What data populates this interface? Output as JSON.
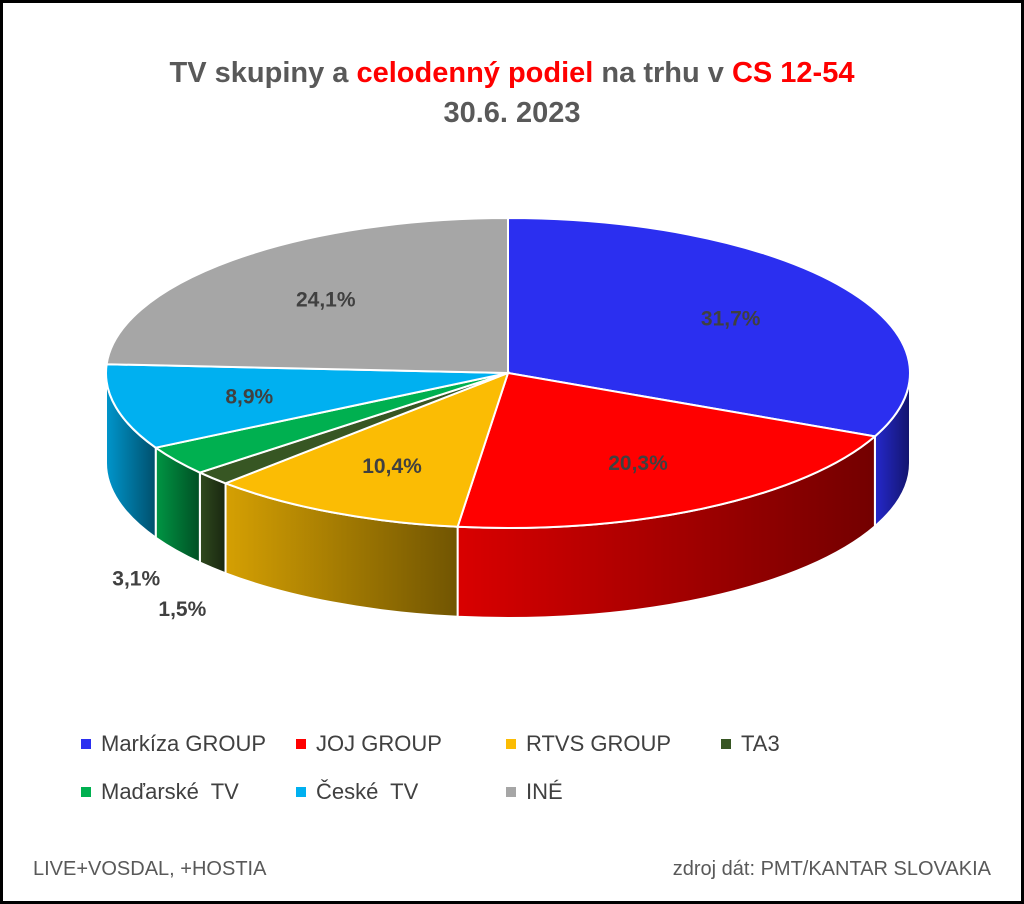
{
  "title": {
    "line1_a": "TV skupiny a ",
    "line1_b": "celodenný podiel",
    "line1_c": " na trhu v ",
    "line1_d": "CS 12-54",
    "line2": "30.6. 2023"
  },
  "chart_data": {
    "type": "pie",
    "style": "3d",
    "categories": [
      "Markíza GROUP",
      "JOJ GROUP",
      "RTVS GROUP",
      "TA3",
      "Maďarské  TV",
      "České  TV",
      "INÉ"
    ],
    "values": [
      31.7,
      20.3,
      10.4,
      1.5,
      3.1,
      8.9,
      24.1
    ],
    "value_labels": [
      "31,7%",
      "20,3%",
      "10,4%",
      "1,5%",
      "3,1%",
      "8,9%",
      "24,1%"
    ],
    "colors": [
      "#2b2ff0",
      "#ff0000",
      "#fbbc04",
      "#375623",
      "#00b050",
      "#00b0f0",
      "#a6a6a6"
    ],
    "legend_position": "bottom"
  },
  "footer": {
    "left": "LIVE+VOSDAL,  +HOSTIA",
    "right": "zdroj dát: PMT/KANTAR SLOVAKIA"
  }
}
